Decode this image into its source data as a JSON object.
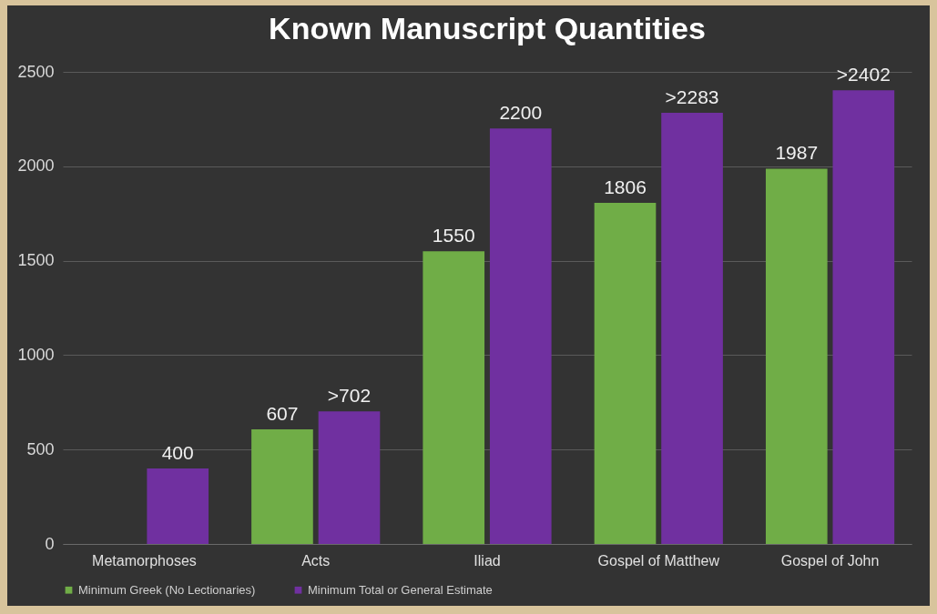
{
  "chart_data": {
    "type": "bar",
    "title": "Known Manuscript Quantities",
    "categories": [
      "Metamorphoses",
      "Acts",
      "Iliad",
      "Gospel of Matthew",
      "Gospel of John"
    ],
    "series": [
      {
        "name": "Minimum Greek (No Lectionaries)",
        "color": "#70ad47",
        "values": [
          null,
          607,
          1550,
          1806,
          1987
        ],
        "value_labels": [
          null,
          "607",
          "1550",
          "1806",
          "1987"
        ]
      },
      {
        "name": "Minimum Total or General Estimate",
        "color": "#7030a0",
        "values": [
          400,
          702,
          2200,
          2283,
          2402
        ],
        "value_labels": [
          "400",
          ">702",
          "2200",
          ">2283",
          ">2402"
        ]
      }
    ],
    "ylim": [
      0,
      2500
    ],
    "yticks": [
      0,
      500,
      1000,
      1500,
      2000,
      2500
    ],
    "grid": "y",
    "legend": "bottom"
  }
}
